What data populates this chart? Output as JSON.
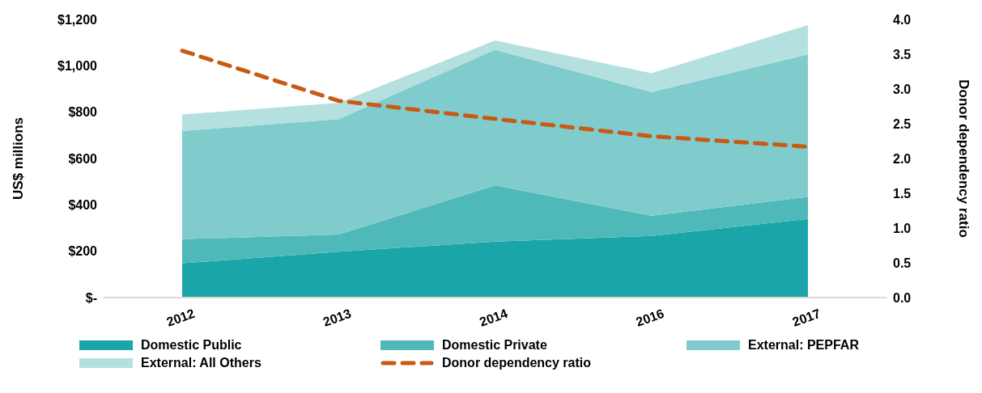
{
  "chart_data": {
    "type": "area",
    "stacked": true,
    "categories": [
      "2012",
      "2013",
      "2014",
      "2016",
      "2017"
    ],
    "series": [
      {
        "name": "Domestic Public",
        "color": "#1aa6a8",
        "values": [
          148,
          198,
          242,
          266,
          339
        ]
      },
      {
        "name": "Domestic Private",
        "color": "#4fb8b8",
        "values": [
          104,
          74,
          242,
          87,
          95
        ]
      },
      {
        "name": "External: PEPFAR",
        "color": "#80cccd",
        "values": [
          467,
          498,
          585,
          534,
          615
        ]
      },
      {
        "name": "External: All Others",
        "color": "#b5e0e0",
        "values": [
          71,
          70,
          40,
          81,
          127
        ]
      },
      {
        "name": "Donor dependency ratio",
        "type": "line",
        "axis": "y2",
        "color": "#c85a14",
        "line_style": "dashed",
        "values": [
          3.55,
          2.83,
          2.57,
          2.32,
          2.17
        ]
      }
    ],
    "ylabel": "US$ millions",
    "y2label": "Donor dependency ratio",
    "ylim": [
      0,
      1200
    ],
    "yticks": [
      {
        "value": 0,
        "label": "$-"
      },
      {
        "value": 200,
        "label": "$200"
      },
      {
        "value": 400,
        "label": "$400"
      },
      {
        "value": 600,
        "label": "$600"
      },
      {
        "value": 800,
        "label": "$800"
      },
      {
        "value": 1000,
        "label": "$1,000"
      },
      {
        "value": 1200,
        "label": "$1,200"
      }
    ],
    "y2lim": [
      0,
      4
    ],
    "y2ticks": [
      {
        "value": 0,
        "label": "0.0"
      },
      {
        "value": 0.5,
        "label": "0.5"
      },
      {
        "value": 1,
        "label": "1.0"
      },
      {
        "value": 1.5,
        "label": "1.5"
      },
      {
        "value": 2,
        "label": "2.0"
      },
      {
        "value": 2.5,
        "label": "2.5"
      },
      {
        "value": 3,
        "label": "3.0"
      },
      {
        "value": 3.5,
        "label": "3.5"
      },
      {
        "value": 4,
        "label": "4.0"
      }
    ],
    "legend": "bottom",
    "marker": "none"
  }
}
